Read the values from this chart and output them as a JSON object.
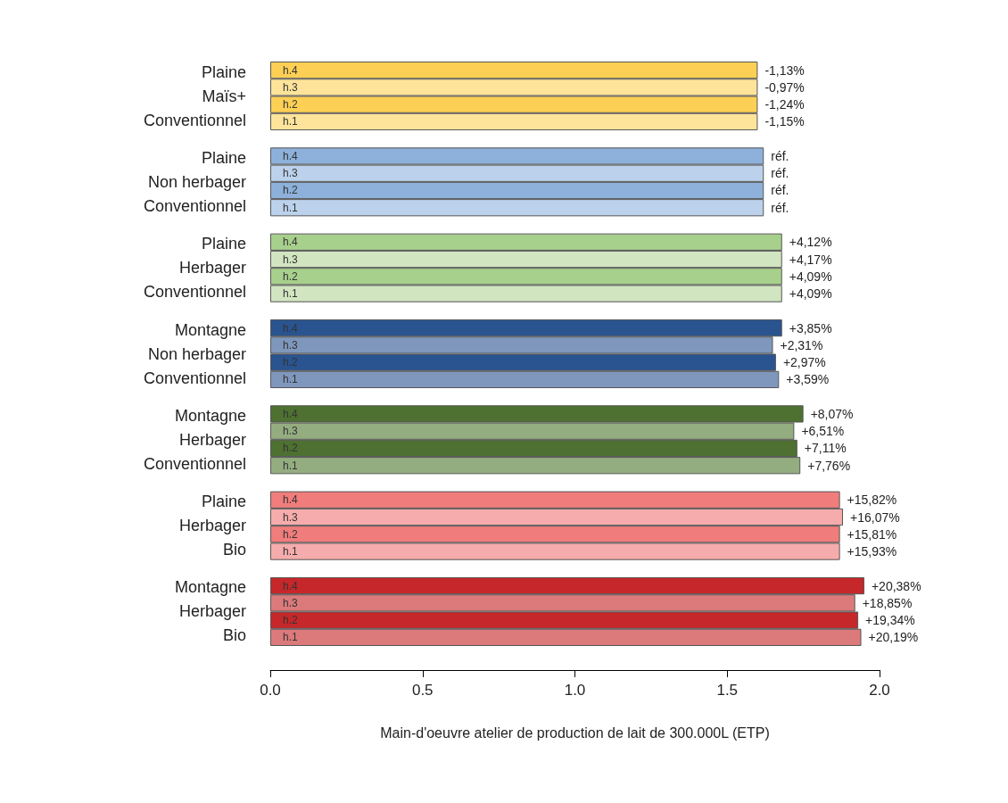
{
  "chart_data": {
    "type": "bar",
    "orientation": "horizontal",
    "xlabel": "Main-d'oeuvre atelier de production de lait de 300.000L (ETP)",
    "categories": [
      "h.4",
      "h.3",
      "h.2",
      "h.1",
      null,
      "h.4",
      "h.3",
      "h.2",
      "h.1",
      null,
      "h.4",
      "h.3",
      "h.2",
      "h.1",
      null,
      "h.4",
      "h.3",
      "h.2",
      "h.1",
      null,
      "h.4",
      "h.3",
      "h.2",
      "h.1",
      null,
      "h.4",
      "h.3",
      "h.2",
      "h.1",
      null,
      "h.4",
      "h.3",
      "h.2",
      "h.1"
    ],
    "values": [
      1.6,
      1.6,
      1.6,
      1.6,
      null,
      1.62,
      1.62,
      1.62,
      1.62,
      null,
      1.68,
      1.68,
      1.68,
      1.68,
      null,
      1.68,
      1.65,
      1.66,
      1.67,
      null,
      1.75,
      1.72,
      1.73,
      1.74,
      null,
      1.87,
      1.88,
      1.87,
      1.87,
      null,
      1.95,
      1.92,
      1.93,
      1.94
    ],
    "colors": [
      "#fdd055",
      "#fde49a",
      "#fdd055",
      "#fde49a",
      null,
      "#8db1da",
      "#bcd2ec",
      "#8db1da",
      "#bcd2ec",
      null,
      "#a8d08d",
      "#d1e5c1",
      "#a8d08d",
      "#d1e5c1",
      null,
      "#2a5490",
      "#7f97bc",
      "#2a5490",
      "#7f97bc",
      null,
      "#4e7131",
      "#94ad80",
      "#4e7131",
      "#94ad80",
      null,
      "#f07c7c",
      "#f6acac",
      "#f07c7c",
      "#f6acac",
      null,
      "#c6272a",
      "#dc7a7b",
      "#c6272a",
      "#dc7a7b"
    ],
    "xlim": [
      0,
      2
    ],
    "xticks": [
      {
        "value": 0,
        "label": "0.0"
      },
      {
        "value": 0.5,
        "label": "0.5"
      },
      {
        "value": 1,
        "label": "1.0"
      },
      {
        "value": 1.5,
        "label": "1.5"
      },
      {
        "value": 2,
        "label": "2.0"
      }
    ],
    "annotations": [
      "Plaine\nMaïs+\nConventionnel",
      "Plaine\nNon herbager\nConventionnel",
      "Plaine\nHerbager\nConventionnel",
      "Montagne\nNon herbager\nConventionnel",
      "Montagne\nHerbager\nConventionnel",
      "Plaine\nHerbager\nBio",
      "Montagne\nHerbager\nBio",
      "-1,13%",
      "-0,97%",
      "-1,24%",
      "-1,15%",
      "réf.",
      "réf.",
      "réf.",
      "réf.",
      "+4,12%",
      "+4,17%",
      "+4,09%",
      "+4,09%",
      "+3,85%",
      "+2,31%",
      "+2,97%",
      "+3,59%",
      "+8,07%",
      "+6,51%",
      "+7,11%",
      "+7,76%",
      "+15,82%",
      "+16,07%",
      "+15,81%",
      "+15,93%",
      "+20,38%",
      "+18,85%",
      "+19,34%",
      "+20,19%"
    ],
    "grid": false
  }
}
